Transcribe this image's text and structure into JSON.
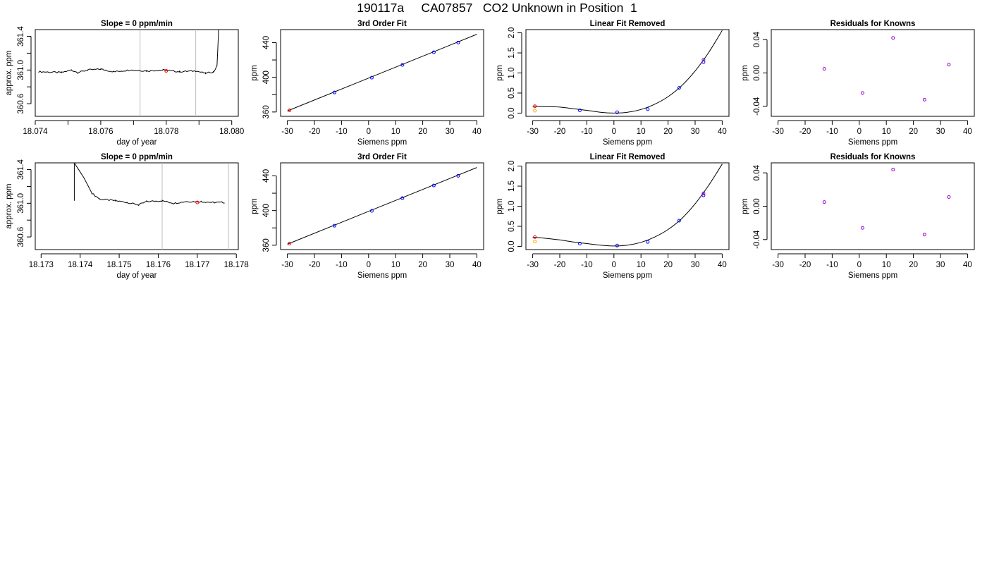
{
  "title": "190117a     CA07857   CO2 Unknown in Position  1",
  "colors": {
    "line": "#000000",
    "vline": "#bebebe",
    "unknown_point": "#ff0000",
    "standard_point": "#0000ff",
    "standard_point_alt": "#9400d3",
    "excluded_point": "#ffa500"
  },
  "chart_data": [
    {
      "id": "r1c1",
      "type": "line",
      "title": "Slope =  0  ppm/min",
      "xlabel": "day of year",
      "ylabel": "approx. ppm",
      "xlim": [
        18.074,
        18.0802
      ],
      "ylim": [
        360.45,
        361.48
      ],
      "xticks": [
        "18.074",
        "18.075",
        "18.076",
        "18.077",
        "18.078",
        "18.079",
        "18.080"
      ],
      "xtick_labels": [
        "18.074",
        "",
        "18.076",
        "",
        "18.078",
        "",
        "18.080"
      ],
      "yticks": [
        "360.6",
        "360.8",
        "361.0",
        "361.2",
        "361.4"
      ],
      "ytick_labels": [
        "360.6",
        "",
        "361.0",
        "",
        "361.4"
      ],
      "vlines": [
        18.0772,
        18.0789
      ],
      "series": [
        {
          "x0": 18.0741,
          "x1": 18.0795,
          "base": 360.98,
          "segments": [
            [
              18.0748,
              360.97
            ],
            [
              18.0751,
              361.0
            ],
            [
              18.0753,
              360.97
            ],
            [
              18.0756,
              361.0
            ],
            [
              18.076,
              361.01
            ],
            [
              18.0764,
              360.98
            ],
            [
              18.0769,
              361.0
            ],
            [
              18.0774,
              360.99
            ],
            [
              18.0779,
              361.0
            ],
            [
              18.0784,
              360.98
            ],
            [
              18.0789,
              360.99
            ],
            [
              18.0792,
              360.96
            ],
            [
              18.07945,
              360.98
            ],
            [
              18.07955,
              361.05
            ],
            [
              18.0796,
              361.48
            ]
          ]
        }
      ],
      "marker": {
        "x": 18.078,
        "y": 360.99
      }
    },
    {
      "id": "r1c2",
      "type": "scatter",
      "title": "3rd Order Fit",
      "xlabel": "Siemens ppm",
      "ylabel": "ppm",
      "xlim": [
        -32.5,
        42.5
      ],
      "ylim": [
        355,
        455
      ],
      "xticks": [
        "-30",
        "-20",
        "-10",
        "0",
        "10",
        "20",
        "30",
        "40"
      ],
      "yticks": [
        "360",
        "380",
        "400",
        "420",
        "440"
      ],
      "ytick_labels": [
        "360",
        "",
        "400",
        "",
        "440"
      ],
      "fit": {
        "type": "linear",
        "x": [
          -30,
          40
        ],
        "y": [
          361.2,
          449.6
        ]
      },
      "points": [
        {
          "x": 24.1,
          "y": 428.9,
          "role": "standard"
        },
        {
          "x": 12.5,
          "y": 414.3,
          "role": "standard"
        },
        {
          "x": -12.6,
          "y": 382.5,
          "role": "standard"
        },
        {
          "x": 33.1,
          "y": 440.1,
          "role": "standard"
        },
        {
          "x": 1.2,
          "y": 399.6,
          "role": "standard"
        },
        {
          "x": -29.2,
          "y": 361.9,
          "role": "unknown"
        }
      ]
    },
    {
      "id": "r1c3",
      "type": "scatter",
      "title": "Linear Fit Removed",
      "xlabel": "Siemens ppm",
      "ylabel": "ppm",
      "xlim": [
        -32.5,
        42.5
      ],
      "ylim": [
        -0.08,
        2.08
      ],
      "xticks": [
        "-30",
        "-20",
        "-10",
        "0",
        "10",
        "20",
        "30",
        "40"
      ],
      "yticks": [
        "0.0",
        "0.5",
        "1.0",
        "1.5",
        "2.0"
      ],
      "curve": {
        "x": [
          -30,
          -25,
          -20,
          -15,
          -10,
          -5,
          0,
          5,
          10,
          15,
          20,
          25,
          30,
          35,
          40
        ],
        "y": [
          0.17,
          0.16,
          0.15,
          0.11,
          0.07,
          0.02,
          0.0,
          0.02,
          0.09,
          0.22,
          0.41,
          0.68,
          1.05,
          1.51,
          2.06
        ]
      },
      "points": [
        {
          "x": 24.1,
          "y": 0.63,
          "role": "standard"
        },
        {
          "x": 12.5,
          "y": 0.1,
          "role": "standard"
        },
        {
          "x": -12.6,
          "y": 0.07,
          "role": "standard"
        },
        {
          "x": 33.1,
          "y": 1.27,
          "role": "standard"
        },
        {
          "x": 33.1,
          "y": 1.33,
          "role": "standard_alt"
        },
        {
          "x": 1.2,
          "y": 0.02,
          "role": "standard"
        },
        {
          "x": -29.2,
          "y": 0.17,
          "role": "unknown"
        },
        {
          "x": -29.2,
          "y": 0.06,
          "role": "excluded"
        }
      ]
    },
    {
      "id": "r1c4",
      "type": "scatter",
      "title": "Residuals for Knowns",
      "xlabel": "Siemens ppm",
      "ylabel": "ppm",
      "xlim": [
        -32.5,
        42.5
      ],
      "ylim": [
        -0.052,
        0.052
      ],
      "xticks": [
        "-30",
        "-20",
        "-10",
        "0",
        "10",
        "20",
        "30",
        "40"
      ],
      "yticks": [
        "-0.04",
        "0.00",
        "0.04"
      ],
      "points": [
        {
          "x": -12.9,
          "y": 0.005,
          "role": "standard_alt"
        },
        {
          "x": 1.2,
          "y": -0.024,
          "role": "standard_alt"
        },
        {
          "x": 12.5,
          "y": 0.042,
          "role": "standard_alt"
        },
        {
          "x": 24.1,
          "y": -0.032,
          "role": "standard_alt"
        },
        {
          "x": 33.1,
          "y": 0.01,
          "role": "standard_alt"
        }
      ]
    },
    {
      "id": "r2c1",
      "type": "line",
      "title": "Slope =  0  ppm/min",
      "xlabel": "day of year",
      "ylabel": "approx. ppm",
      "xlim": [
        18.17285,
        18.17805
      ],
      "ylim": [
        360.45,
        361.48
      ],
      "xticks": [
        "18.173",
        "18.174",
        "18.175",
        "18.176",
        "18.177",
        "18.178"
      ],
      "yticks": [
        "360.6",
        "360.8",
        "361.0",
        "361.2",
        "361.4"
      ],
      "ytick_labels": [
        "360.6",
        "",
        "361.0",
        "",
        "361.4"
      ],
      "vlines": [
        18.1761,
        18.1778
      ],
      "series": [
        {
          "x0": 18.17385,
          "x1": 18.1777,
          "base": 361.03,
          "segments": [
            [
              18.17385,
              361.48
            ],
            [
              18.1741,
              361.3
            ],
            [
              18.1743,
              361.12
            ],
            [
              18.1745,
              361.05
            ],
            [
              18.1749,
              361.03
            ],
            [
              18.1752,
              361.01
            ],
            [
              18.1755,
              360.98
            ],
            [
              18.1757,
              361.02
            ],
            [
              18.1761,
              361.03
            ],
            [
              18.1764,
              361.0
            ],
            [
              18.1767,
              361.02
            ],
            [
              18.1771,
              361.02
            ],
            [
              18.1774,
              361.01
            ],
            [
              18.1777,
              361.01
            ]
          ]
        }
      ],
      "marker": {
        "x": 18.177,
        "y": 361.01
      }
    },
    {
      "id": "r2c2",
      "type": "scatter",
      "title": "3rd Order Fit",
      "xlabel": "Siemens ppm",
      "ylabel": "ppm",
      "xlim": [
        -32.5,
        42.5
      ],
      "ylim": [
        355,
        455
      ],
      "xticks": [
        "-30",
        "-20",
        "-10",
        "0",
        "10",
        "20",
        "30",
        "40"
      ],
      "yticks": [
        "360",
        "380",
        "400",
        "420",
        "440"
      ],
      "ytick_labels": [
        "360",
        "",
        "400",
        "",
        "440"
      ],
      "fit": {
        "type": "linear",
        "x": [
          -30,
          40
        ],
        "y": [
          361.2,
          449.6
        ]
      },
      "points": [
        {
          "x": 24.1,
          "y": 428.9,
          "role": "standard"
        },
        {
          "x": 12.5,
          "y": 414.3,
          "role": "standard"
        },
        {
          "x": -12.6,
          "y": 382.5,
          "role": "standard"
        },
        {
          "x": 33.1,
          "y": 440.1,
          "role": "standard"
        },
        {
          "x": 1.2,
          "y": 399.6,
          "role": "standard"
        },
        {
          "x": -29.2,
          "y": 361.9,
          "role": "unknown"
        }
      ]
    },
    {
      "id": "r2c3",
      "type": "scatter",
      "title": "Linear Fit Removed",
      "xlabel": "Siemens ppm",
      "ylabel": "ppm",
      "xlim": [
        -32.5,
        42.5
      ],
      "ylim": [
        -0.08,
        2.08
      ],
      "xticks": [
        "-30",
        "-20",
        "-10",
        "0",
        "10",
        "20",
        "30",
        "40"
      ],
      "yticks": [
        "0.0",
        "0.5",
        "1.0",
        "1.5",
        "2.0"
      ],
      "curve": {
        "x": [
          -30,
          -25,
          -20,
          -15,
          -10,
          -5,
          0,
          5,
          10,
          15,
          20,
          25,
          30,
          35,
          40
        ],
        "y": [
          0.23,
          0.2,
          0.16,
          0.11,
          0.07,
          0.03,
          0.01,
          0.03,
          0.1,
          0.23,
          0.42,
          0.69,
          1.06,
          1.52,
          2.05
        ]
      },
      "points": [
        {
          "x": 24.1,
          "y": 0.64,
          "role": "standard"
        },
        {
          "x": 12.5,
          "y": 0.11,
          "role": "standard"
        },
        {
          "x": -12.6,
          "y": 0.07,
          "role": "standard"
        },
        {
          "x": 33.1,
          "y": 1.27,
          "role": "standard"
        },
        {
          "x": 33.1,
          "y": 1.32,
          "role": "standard_alt"
        },
        {
          "x": 1.2,
          "y": 0.02,
          "role": "standard"
        },
        {
          "x": -29.2,
          "y": 0.23,
          "role": "unknown"
        },
        {
          "x": -29.2,
          "y": 0.12,
          "role": "excluded"
        }
      ]
    },
    {
      "id": "r2c4",
      "type": "scatter",
      "title": "Residuals for Knowns",
      "xlabel": "Siemens ppm",
      "ylabel": "ppm",
      "xlim": [
        -32.5,
        42.5
      ],
      "ylim": [
        -0.052,
        0.052
      ],
      "xticks": [
        "-30",
        "-20",
        "-10",
        "0",
        "10",
        "20",
        "30",
        "40"
      ],
      "yticks": [
        "-0.04",
        "0.00",
        "0.04"
      ],
      "points": [
        {
          "x": -12.9,
          "y": 0.005,
          "role": "standard_alt"
        },
        {
          "x": 1.2,
          "y": -0.026,
          "role": "standard_alt"
        },
        {
          "x": 12.5,
          "y": 0.044,
          "role": "standard_alt"
        },
        {
          "x": 24.1,
          "y": -0.034,
          "role": "standard_alt"
        },
        {
          "x": 33.1,
          "y": 0.011,
          "role": "standard_alt"
        }
      ]
    }
  ]
}
